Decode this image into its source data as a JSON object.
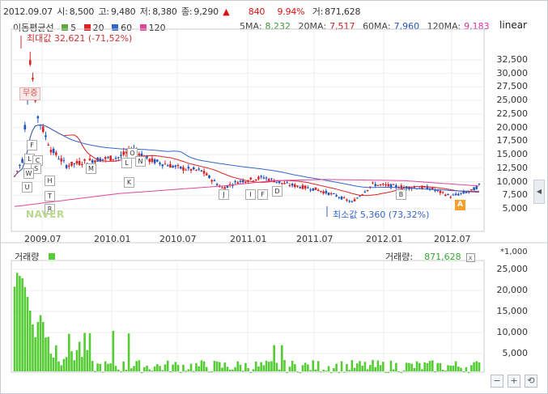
{
  "info": {
    "date": "2012.09.07",
    "open_label": "시:",
    "open": "8,500",
    "high_label": "고:",
    "high": "9,480",
    "low_label": "저:",
    "low": "8,380",
    "close_label": "종:",
    "close": "9,290",
    "change": "840",
    "change_pct": "9.94%",
    "volume_label": "거:",
    "volume": "871,628",
    "up_arrow": "▲"
  },
  "ma_legend": {
    "title": "이동평균선",
    "p5": "5",
    "p20": "20",
    "p60": "60",
    "p120": "120"
  },
  "ma_values": [
    {
      "label": "5MA:",
      "value": "8,232",
      "color": "#3a9a3a"
    },
    {
      "label": "20MA:",
      "value": "7,517",
      "color": "#cc2222"
    },
    {
      "label": "60MA:",
      "value": "7,960",
      "color": "#2255bb"
    },
    {
      "label": "120MA:",
      "value": "9,183",
      "color": "#dd3399"
    }
  ],
  "colors": {
    "ma5": "#3a9a3a",
    "ma20": "#dd2222",
    "ma60": "#3366cc",
    "ma120": "#e0449a",
    "up": "#dd2222",
    "down": "#2255bb",
    "volume": "#55cc33"
  },
  "scale_type": "linear",
  "price_axis": [
    "32,500",
    "30,000",
    "27,500",
    "25,000",
    "22,500",
    "20,000",
    "17,500",
    "15,000",
    "12,500",
    "10,000",
    "7,500",
    "5,000"
  ],
  "x_axis": [
    "2009.07",
    "2010.01",
    "2010.07",
    "2011.01",
    "2011.07",
    "2012.01",
    "2012.07"
  ],
  "max_label": "최대값 32,621 (-71,52%)",
  "min_label": "최소값 5,360 (73,32%)",
  "avg_badge": "무증",
  "watermark": "NAVER",
  "a_badge": "A",
  "markers": [
    "F",
    "L",
    "C",
    "S",
    "W",
    "H",
    "U",
    "T",
    "R",
    "M",
    "O",
    "L",
    "N",
    "K",
    "J",
    "I",
    "F",
    "D",
    "B"
  ],
  "volume_panel": {
    "title": "거래량",
    "label": "거래량:",
    "value": "871,628",
    "close": "x",
    "unit": "*1,000",
    "axis": [
      "25,000",
      "20,000",
      "15,000",
      "10,000",
      "5,000"
    ]
  },
  "controls": {
    "minus": "−",
    "plus": "+",
    "reset": "⟲"
  },
  "side_handle": "◀"
}
